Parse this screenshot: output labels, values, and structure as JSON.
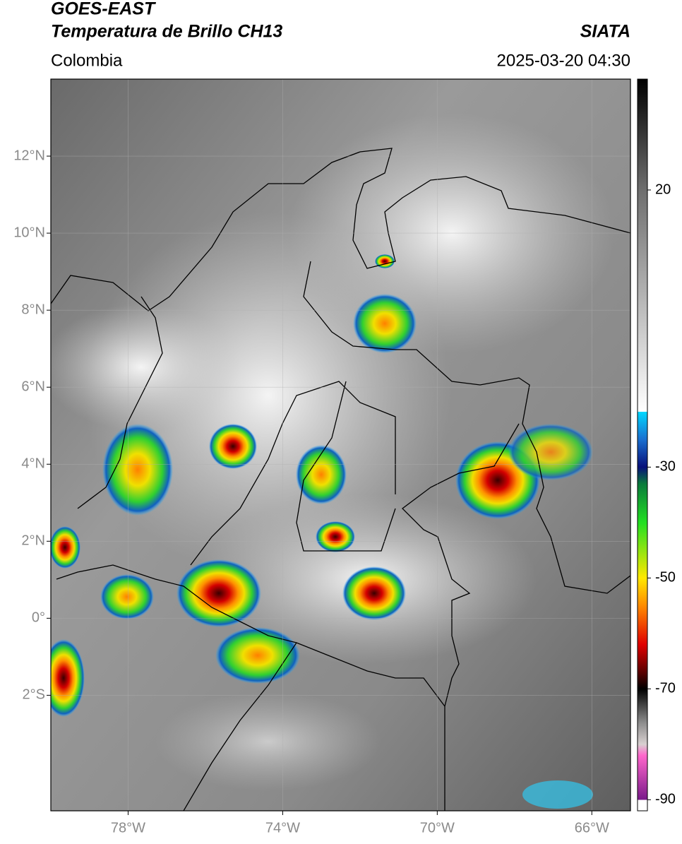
{
  "header": {
    "title_line1": "GOES-EAST",
    "title_line2": "Temperatura de Brillo CH13",
    "source": "SIATA",
    "region": "Colombia",
    "datetime": "2025-03-20 04:30"
  },
  "map": {
    "xlim": [
      -80,
      -65
    ],
    "ylim": [
      -5,
      14
    ],
    "xticks": [
      {
        "value": -78,
        "label": "78°W"
      },
      {
        "value": -74,
        "label": "74°W"
      },
      {
        "value": -70,
        "label": "70°W"
      },
      {
        "value": -66,
        "label": "66°W"
      }
    ],
    "yticks": [
      {
        "value": 12,
        "label": "12°N"
      },
      {
        "value": 10,
        "label": "10°N"
      },
      {
        "value": 8,
        "label": "8°N"
      },
      {
        "value": 6,
        "label": "6°N"
      },
      {
        "value": 4,
        "label": "4°N"
      },
      {
        "value": 2,
        "label": "2°N"
      },
      {
        "value": 0,
        "label": "0°"
      },
      {
        "value": -2,
        "label": "2°S"
      }
    ],
    "grid": true
  },
  "colorbar": {
    "lim": [
      -92,
      40
    ],
    "ticks": [
      20,
      -30,
      -50,
      -70,
      -90
    ],
    "stops": [
      [
        40,
        "#000000"
      ],
      [
        20,
        "#6e6e6e"
      ],
      [
        -20,
        "#ffffff"
      ],
      [
        -20,
        "#00d8ff"
      ],
      [
        -25,
        "#1a6fd0"
      ],
      [
        -30,
        "#08107a"
      ],
      [
        -33,
        "#0a7a3c"
      ],
      [
        -40,
        "#22e022"
      ],
      [
        -50,
        "#ffe800"
      ],
      [
        -55,
        "#ff8c00"
      ],
      [
        -62,
        "#e00000"
      ],
      [
        -67,
        "#5a0000"
      ],
      [
        -70,
        "#000000"
      ],
      [
        -76,
        "#8a8a8a"
      ],
      [
        -80,
        "#d8d0d0"
      ],
      [
        -82,
        "#ff66cc"
      ],
      [
        -90,
        "#7a1a8a"
      ],
      [
        -90,
        "#ffffff"
      ],
      [
        -92,
        "#ffffff"
      ]
    ]
  }
}
